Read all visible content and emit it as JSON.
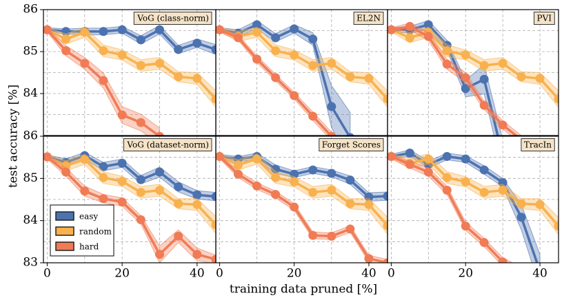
{
  "xlabel": "training data pruned [%]",
  "ylabel": "test accuracy [%]",
  "chart_data": [
    {
      "type": "line",
      "title": "VoG (class-norm)",
      "x": [
        0,
        5,
        10,
        15,
        20,
        25,
        30,
        35,
        40,
        45
      ],
      "xlim": [
        -1,
        45
      ],
      "ylim": [
        83,
        86
      ],
      "xticks": [
        0,
        20,
        40
      ],
      "yticks": [
        84,
        85,
        86
      ],
      "minor_xticks": [
        10,
        30
      ],
      "minor_yticks": [
        83.5,
        84.5,
        85.5
      ],
      "grid": true,
      "series": [
        {
          "name": "easy",
          "color": "#4c72b0",
          "values": [
            85.52,
            85.48,
            85.48,
            85.48,
            85.52,
            85.28,
            85.52,
            85.05,
            85.2,
            85.05
          ],
          "errors": [
            0.05,
            0.06,
            0.08,
            0.08,
            0.08,
            0.1,
            0.1,
            0.1,
            0.1,
            0.12
          ]
        },
        {
          "name": "random",
          "color": "#f8b14e",
          "values": [
            85.52,
            85.3,
            85.46,
            85.02,
            84.92,
            84.67,
            84.72,
            84.4,
            84.36,
            83.87
          ],
          "errors": [
            0.05,
            0.12,
            0.12,
            0.14,
            0.12,
            0.14,
            0.14,
            0.12,
            0.14,
            0.2
          ]
        },
        {
          "name": "hard",
          "color": "#f07b55",
          "values": [
            85.52,
            85.02,
            84.72,
            84.31,
            83.49,
            83.31,
            82.98,
            null,
            null,
            null
          ],
          "errors": [
            0.05,
            0.12,
            0.14,
            0.18,
            0.2,
            0.2,
            0.2,
            null,
            null,
            null
          ]
        }
      ]
    },
    {
      "type": "line",
      "title": "EL2N",
      "x": [
        0,
        5,
        10,
        15,
        20,
        25,
        30,
        35,
        40,
        45
      ],
      "xlim": [
        -1,
        45
      ],
      "ylim": [
        83,
        86
      ],
      "xticks": [
        0,
        20,
        40
      ],
      "yticks": [
        84,
        85,
        86
      ],
      "minor_xticks": [
        10,
        30
      ],
      "minor_yticks": [
        83.5,
        84.5,
        85.5
      ],
      "grid": true,
      "series": [
        {
          "name": "easy",
          "color": "#4c72b0",
          "values": [
            85.52,
            85.44,
            85.64,
            85.33,
            85.54,
            85.3,
            83.69,
            82.95,
            null,
            null
          ],
          "errors": [
            0.05,
            0.08,
            0.1,
            0.1,
            0.1,
            0.15,
            0.5,
            0.6,
            null,
            null
          ]
        },
        {
          "name": "random",
          "color": "#f8b14e",
          "values": [
            85.52,
            85.36,
            85.46,
            85.02,
            84.92,
            84.67,
            84.72,
            84.4,
            84.36,
            83.87
          ],
          "errors": [
            0.05,
            0.12,
            0.12,
            0.14,
            0.12,
            0.14,
            0.14,
            0.12,
            0.14,
            0.2
          ]
        },
        {
          "name": "hard",
          "color": "#f07b55",
          "values": [
            85.52,
            85.33,
            84.82,
            84.38,
            83.95,
            83.46,
            82.98,
            null,
            null,
            null
          ],
          "errors": [
            0.05,
            0.06,
            0.08,
            0.08,
            0.08,
            0.1,
            0.1,
            null,
            null,
            null
          ]
        }
      ]
    },
    {
      "type": "line",
      "title": "PVI",
      "x": [
        0,
        5,
        10,
        15,
        20,
        25,
        30,
        35,
        40,
        45
      ],
      "xlim": [
        -1,
        45
      ],
      "ylim": [
        83,
        86
      ],
      "xticks": [
        0,
        20,
        40
      ],
      "yticks": [
        84,
        85,
        86
      ],
      "minor_xticks": [
        10,
        30
      ],
      "minor_yticks": [
        83.5,
        84.5,
        85.5
      ],
      "grid": true,
      "series": [
        {
          "name": "easy",
          "color": "#4c72b0",
          "values": [
            85.52,
            85.52,
            85.64,
            85.15,
            84.12,
            84.34,
            82.5,
            null,
            null,
            null
          ],
          "errors": [
            0.05,
            0.08,
            0.1,
            0.12,
            0.2,
            0.35,
            0.4,
            null,
            null,
            null
          ]
        },
        {
          "name": "random",
          "color": "#f8b14e",
          "values": [
            85.52,
            85.33,
            85.46,
            85.02,
            84.92,
            84.67,
            84.72,
            84.4,
            84.36,
            83.87
          ],
          "errors": [
            0.05,
            0.12,
            0.12,
            0.14,
            0.12,
            0.14,
            0.14,
            0.12,
            0.14,
            0.2
          ]
        },
        {
          "name": "hard",
          "color": "#f07b55",
          "values": [
            85.52,
            85.6,
            85.36,
            84.7,
            84.38,
            83.72,
            83.25,
            82.9,
            null,
            null
          ],
          "errors": [
            0.05,
            0.08,
            0.1,
            0.12,
            0.12,
            0.1,
            0.1,
            0.1,
            null,
            null
          ]
        }
      ]
    },
    {
      "type": "line",
      "title": "VoG (dataset-norm)",
      "x": [
        0,
        5,
        10,
        15,
        20,
        25,
        30,
        35,
        40,
        45
      ],
      "xlim": [
        -1,
        45
      ],
      "ylim": [
        83,
        86
      ],
      "xticks": [
        0,
        20,
        40
      ],
      "yticks": [
        83,
        84,
        85,
        86
      ],
      "minor_xticks": [
        10,
        30
      ],
      "minor_yticks": [
        83.5,
        84.5,
        85.5
      ],
      "grid": true,
      "legend": "lower left",
      "series": [
        {
          "name": "easy",
          "color": "#4c72b0",
          "values": [
            85.51,
            85.38,
            85.54,
            85.28,
            85.36,
            84.97,
            85.15,
            84.8,
            84.61,
            84.57
          ],
          "errors": [
            0.05,
            0.08,
            0.08,
            0.1,
            0.1,
            0.1,
            0.12,
            0.12,
            0.1,
            0.1
          ]
        },
        {
          "name": "random",
          "color": "#f8b14e",
          "values": [
            85.51,
            85.3,
            85.45,
            85.02,
            84.93,
            84.67,
            84.72,
            84.4,
            84.38,
            83.9
          ],
          "errors": [
            0.05,
            0.12,
            0.12,
            0.14,
            0.12,
            0.14,
            0.14,
            0.12,
            0.14,
            0.2
          ]
        },
        {
          "name": "hard",
          "color": "#f07b55",
          "values": [
            85.51,
            85.15,
            84.7,
            84.52,
            84.44,
            84.02,
            83.2,
            83.63,
            83.2,
            83.08
          ],
          "errors": [
            0.05,
            0.1,
            0.12,
            0.1,
            0.1,
            0.1,
            0.2,
            0.15,
            0.15,
            0.1
          ]
        }
      ]
    },
    {
      "type": "line",
      "title": "Forget Scores",
      "x": [
        0,
        5,
        10,
        15,
        20,
        25,
        30,
        35,
        40,
        45
      ],
      "xlim": [
        -1,
        45
      ],
      "ylim": [
        83,
        86
      ],
      "xticks": [
        0,
        20,
        40
      ],
      "yticks": [
        83,
        84,
        85,
        86
      ],
      "minor_xticks": [
        10,
        30
      ],
      "minor_yticks": [
        83.5,
        84.5,
        85.5
      ],
      "grid": true,
      "series": [
        {
          "name": "easy",
          "color": "#4c72b0",
          "values": [
            85.52,
            85.46,
            85.52,
            85.22,
            85.1,
            85.2,
            85.12,
            84.96,
            84.56,
            84.58
          ],
          "errors": [
            0.05,
            0.06,
            0.08,
            0.1,
            0.08,
            0.08,
            0.08,
            0.1,
            0.1,
            0.1
          ]
        },
        {
          "name": "random",
          "color": "#f8b14e",
          "values": [
            85.52,
            85.32,
            85.46,
            85.02,
            84.92,
            84.67,
            84.72,
            84.4,
            84.38,
            83.88
          ],
          "errors": [
            0.05,
            0.12,
            0.12,
            0.14,
            0.12,
            0.14,
            0.14,
            0.12,
            0.14,
            0.2
          ]
        },
        {
          "name": "hard",
          "color": "#f07b55",
          "values": [
            85.52,
            85.1,
            84.82,
            84.62,
            84.32,
            83.65,
            83.63,
            83.8,
            83.1,
            83.0
          ],
          "errors": [
            0.05,
            0.08,
            0.08,
            0.08,
            0.08,
            0.08,
            0.08,
            0.08,
            0.08,
            0.08
          ]
        }
      ]
    },
    {
      "type": "line",
      "title": "TracIn",
      "x": [
        0,
        5,
        10,
        15,
        20,
        25,
        30,
        35,
        40,
        45
      ],
      "xlim": [
        -1,
        45
      ],
      "ylim": [
        83,
        86
      ],
      "xticks": [
        0,
        20,
        40
      ],
      "yticks": [
        83,
        84,
        85,
        86
      ],
      "minor_xticks": [
        10,
        30
      ],
      "minor_yticks": [
        83.5,
        84.5,
        85.5
      ],
      "grid": true,
      "series": [
        {
          "name": "easy",
          "color": "#4c72b0",
          "values": [
            85.52,
            85.6,
            85.33,
            85.52,
            85.46,
            85.2,
            84.9,
            84.08,
            82.8,
            null
          ],
          "errors": [
            0.05,
            0.08,
            0.08,
            0.08,
            0.08,
            0.1,
            0.1,
            0.3,
            0.4,
            null
          ]
        },
        {
          "name": "random",
          "color": "#f8b14e",
          "values": [
            85.52,
            85.36,
            85.46,
            85.02,
            84.92,
            84.67,
            84.72,
            84.4,
            84.38,
            83.87
          ],
          "errors": [
            0.05,
            0.12,
            0.12,
            0.14,
            0.12,
            0.14,
            0.14,
            0.12,
            0.14,
            0.2
          ]
        },
        {
          "name": "hard",
          "color": "#f07b55",
          "values": [
            85.52,
            85.33,
            85.15,
            84.72,
            83.87,
            83.48,
            83.02,
            82.8,
            null,
            null
          ],
          "errors": [
            0.05,
            0.08,
            0.1,
            0.1,
            0.1,
            0.1,
            0.1,
            0.1,
            null,
            null
          ]
        }
      ]
    }
  ]
}
